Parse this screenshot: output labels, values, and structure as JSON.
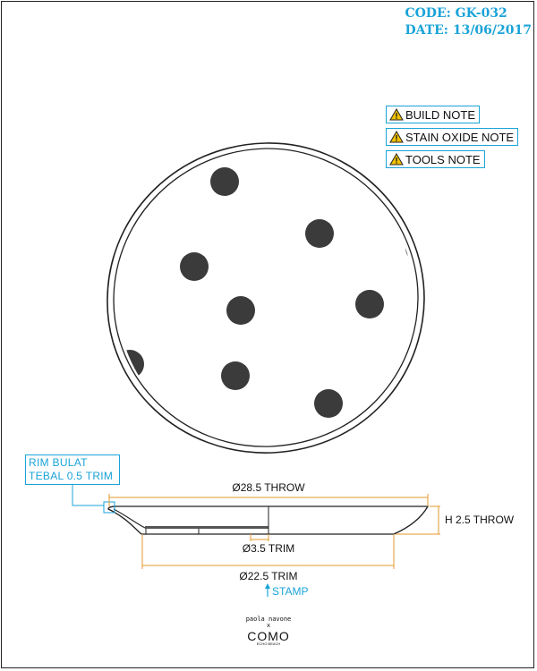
{
  "header": {
    "code": "CODE: GK-032",
    "date": "DATE: 13/06/2017"
  },
  "notes": [
    {
      "label": "BUILD NOTE",
      "icon": "warning-icon"
    },
    {
      "label": "STAIN OXIDE NOTE",
      "icon": "warning-icon"
    },
    {
      "label": "TOOLS NOTE",
      "icon": "warning-icon"
    }
  ],
  "callout": {
    "line1": "RIM BULAT",
    "line2": "TEBAL 0.5 TRIM"
  },
  "dimensions": {
    "diameter_throw": "Ø28.5 THROW",
    "height_throw": "H 2.5 THROW",
    "foot_trim": "Ø3.5 TRIM",
    "base_trim": "Ø22.5 TRIM",
    "stamp": "STAMP"
  },
  "logo": {
    "top": "paola navone",
    "x": "x",
    "main": "COMO",
    "sub": "ECHO BEACH"
  },
  "colors": {
    "accent": "#1aa3d8",
    "dimension": "#e39a2b",
    "dot": "#3b3b3b",
    "line": "#222222"
  }
}
